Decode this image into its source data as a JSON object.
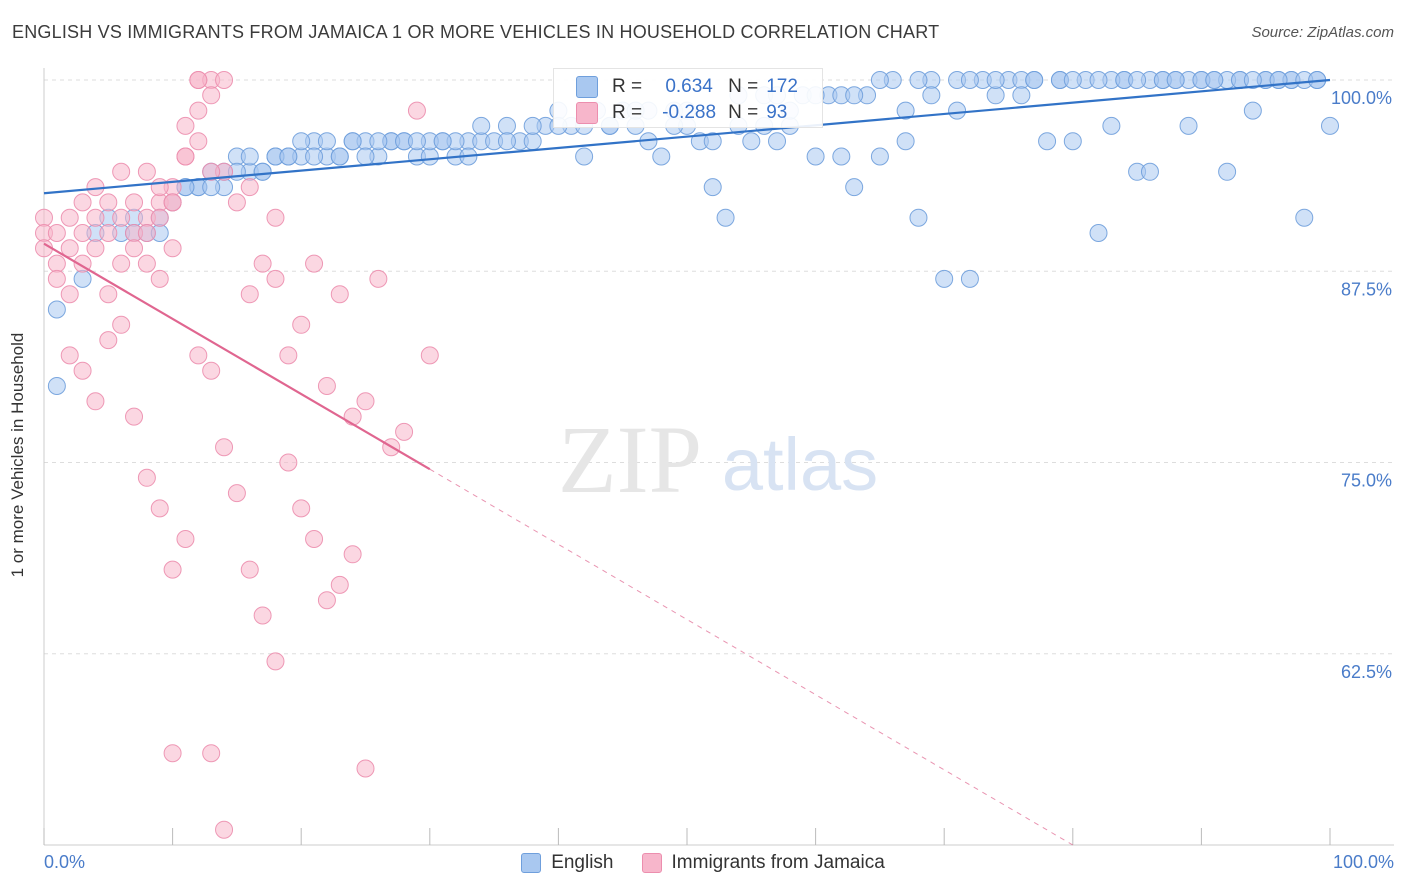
{
  "title": "ENGLISH VS IMMIGRANTS FROM JAMAICA 1 OR MORE VEHICLES IN HOUSEHOLD CORRELATION CHART",
  "source": "Source: ZipAtlas.com",
  "watermark": {
    "zip": "ZIP",
    "atlas": "atlas"
  },
  "stats": {
    "english": {
      "r_label": "R =",
      "r": "0.634",
      "n_label": "N =",
      "n": "172"
    },
    "jamaica": {
      "r_label": "R =",
      "r": "-0.288",
      "n_label": "N =",
      "n": "93"
    }
  },
  "colors": {
    "english_fill": "#a9c8f0",
    "english_stroke": "#6f9fdc",
    "english_line": "#3273c7",
    "jamaica_fill": "#f7b6cb",
    "jamaica_stroke": "#ec8eae",
    "jamaica_line": "#e06690",
    "tick_text": "#4a7cc9",
    "grid": "#dddddd"
  },
  "chart_data": {
    "type": "scatter",
    "title": "ENGLISH VS IMMIGRANTS FROM JAMAICA 1 OR MORE VEHICLES IN HOUSEHOLD CORRELATION CHART",
    "xlabel": "",
    "ylabel": "1 or more Vehicles in Household",
    "xlim": [
      0,
      100
    ],
    "ylim": [
      50,
      100
    ],
    "x_tick_labels": [
      "0.0%",
      "100.0%"
    ],
    "y_ticks": [
      100,
      87.5,
      75,
      62.5
    ],
    "y_tick_labels": [
      "100.0%",
      "87.5%",
      "75.0%",
      "62.5%"
    ],
    "grid": true,
    "legend": "bottom",
    "series": [
      {
        "name": "English",
        "trend": {
          "x": [
            0,
            100
          ],
          "y": [
            92.6,
            100.0
          ],
          "solid_until": 100
        },
        "points": [
          [
            1,
            85
          ],
          [
            1,
            80
          ],
          [
            3,
            87
          ],
          [
            4,
            90
          ],
          [
            5,
            91
          ],
          [
            6,
            90
          ],
          [
            7,
            91
          ],
          [
            8,
            90
          ],
          [
            9,
            91
          ],
          [
            10,
            92
          ],
          [
            11,
            93
          ],
          [
            12,
            93
          ],
          [
            13,
            94
          ],
          [
            14,
            93
          ],
          [
            15,
            95
          ],
          [
            16,
            94
          ],
          [
            17,
            94
          ],
          [
            18,
            95
          ],
          [
            19,
            95
          ],
          [
            20,
            95
          ],
          [
            21,
            96
          ],
          [
            22,
            95
          ],
          [
            23,
            95
          ],
          [
            24,
            96
          ],
          [
            25,
            96
          ],
          [
            26,
            95
          ],
          [
            27,
            96
          ],
          [
            28,
            96
          ],
          [
            29,
            95
          ],
          [
            30,
            95
          ],
          [
            31,
            96
          ],
          [
            32,
            95
          ],
          [
            33,
            96
          ],
          [
            34,
            96
          ],
          [
            35,
            96
          ],
          [
            36,
            97
          ],
          [
            37,
            96
          ],
          [
            38,
            96
          ],
          [
            39,
            97
          ],
          [
            40,
            98
          ],
          [
            41,
            97
          ],
          [
            42,
            95
          ],
          [
            43,
            98
          ],
          [
            44,
            97
          ],
          [
            45,
            98
          ],
          [
            46,
            97
          ],
          [
            47,
            98
          ],
          [
            48,
            95
          ],
          [
            49,
            98
          ],
          [
            50,
            97
          ],
          [
            51,
            96
          ],
          [
            52,
            93
          ],
          [
            53,
            91
          ],
          [
            54,
            99
          ],
          [
            55,
            96
          ],
          [
            56,
            97
          ],
          [
            57,
            96
          ],
          [
            58,
            97
          ],
          [
            59,
            99
          ],
          [
            60,
            95
          ],
          [
            61,
            99
          ],
          [
            62,
            95
          ],
          [
            63,
            93
          ],
          [
            64,
            99
          ],
          [
            65,
            95
          ],
          [
            66,
            100
          ],
          [
            67,
            96
          ],
          [
            68,
            91
          ],
          [
            69,
            100
          ],
          [
            70,
            87
          ],
          [
            71,
            98
          ],
          [
            72,
            87
          ],
          [
            73,
            100
          ],
          [
            74,
            99
          ],
          [
            75,
            100
          ],
          [
            76,
            100
          ],
          [
            77,
            100
          ],
          [
            78,
            96
          ],
          [
            79,
            100
          ],
          [
            80,
            96
          ],
          [
            81,
            100
          ],
          [
            82,
            90
          ],
          [
            83,
            97
          ],
          [
            84,
            100
          ],
          [
            85,
            94
          ],
          [
            86,
            94
          ],
          [
            87,
            100
          ],
          [
            88,
            100
          ],
          [
            89,
            97
          ],
          [
            90,
            100
          ],
          [
            91,
            100
          ],
          [
            92,
            94
          ],
          [
            93,
            100
          ],
          [
            94,
            98
          ],
          [
            95,
            100
          ],
          [
            96,
            100
          ],
          [
            97,
            100
          ],
          [
            98,
            91
          ],
          [
            99,
            100
          ],
          [
            100,
            97
          ],
          [
            23,
            95
          ],
          [
            27,
            96
          ],
          [
            33,
            95
          ],
          [
            38,
            97
          ],
          [
            44,
            97
          ],
          [
            47,
            96
          ],
          [
            49,
            97
          ],
          [
            52,
            96
          ],
          [
            56,
            99
          ],
          [
            58,
            98
          ],
          [
            62,
            99
          ],
          [
            65,
            100
          ],
          [
            67,
            98
          ],
          [
            69,
            99
          ],
          [
            71,
            100
          ],
          [
            76,
            99
          ],
          [
            79,
            100
          ],
          [
            83,
            100
          ],
          [
            86,
            100
          ],
          [
            89,
            100
          ],
          [
            92,
            100
          ],
          [
            95,
            100
          ],
          [
            97,
            100
          ],
          [
            12,
            93
          ],
          [
            14,
            94
          ],
          [
            16,
            95
          ],
          [
            18,
            95
          ],
          [
            20,
            96
          ],
          [
            22,
            96
          ],
          [
            24,
            96
          ],
          [
            26,
            96
          ],
          [
            28,
            96
          ],
          [
            30,
            96
          ],
          [
            32,
            96
          ],
          [
            34,
            97
          ],
          [
            36,
            96
          ],
          [
            40,
            97
          ],
          [
            42,
            97
          ],
          [
            46,
            98
          ],
          [
            50,
            98
          ],
          [
            54,
            97
          ],
          [
            57,
            99
          ],
          [
            60,
            99
          ],
          [
            63,
            99
          ],
          [
            68,
            100
          ],
          [
            72,
            100
          ],
          [
            74,
            100
          ],
          [
            77,
            100
          ],
          [
            80,
            100
          ],
          [
            82,
            100
          ],
          [
            84,
            100
          ],
          [
            85,
            100
          ],
          [
            87,
            100
          ],
          [
            88,
            100
          ],
          [
            90,
            100
          ],
          [
            91,
            100
          ],
          [
            93,
            100
          ],
          [
            94,
            100
          ],
          [
            96,
            100
          ],
          [
            98,
            100
          ],
          [
            99,
            100
          ],
          [
            7,
            90
          ],
          [
            9,
            90
          ],
          [
            11,
            93
          ],
          [
            13,
            93
          ],
          [
            15,
            94
          ],
          [
            17,
            94
          ],
          [
            19,
            95
          ],
          [
            21,
            95
          ],
          [
            25,
            95
          ],
          [
            29,
            96
          ],
          [
            31,
            96
          ]
        ]
      },
      {
        "name": "Immigrants from Jamaica",
        "trend": {
          "x": [
            0,
            80
          ],
          "y": [
            89.3,
            50.0
          ],
          "solid_until": 30
        },
        "points": [
          [
            0,
            91
          ],
          [
            0,
            90
          ],
          [
            1,
            88
          ],
          [
            1,
            87
          ],
          [
            2,
            89
          ],
          [
            2,
            86
          ],
          [
            3,
            90
          ],
          [
            3,
            88
          ],
          [
            4,
            91
          ],
          [
            4,
            89
          ],
          [
            5,
            90
          ],
          [
            5,
            86
          ],
          [
            6,
            91
          ],
          [
            6,
            88
          ],
          [
            7,
            90
          ],
          [
            7,
            92
          ],
          [
            8,
            91
          ],
          [
            8,
            90
          ],
          [
            9,
            92
          ],
          [
            9,
            91
          ],
          [
            10,
            93
          ],
          [
            10,
            92
          ],
          [
            11,
            97
          ],
          [
            11,
            95
          ],
          [
            12,
            100
          ],
          [
            12,
            98
          ],
          [
            13,
            100
          ],
          [
            14,
            94
          ],
          [
            15,
            92
          ],
          [
            16,
            86
          ],
          [
            17,
            88
          ],
          [
            18,
            87
          ],
          [
            19,
            82
          ],
          [
            20,
            84
          ],
          [
            21,
            88
          ],
          [
            22,
            80
          ],
          [
            23,
            86
          ],
          [
            24,
            78
          ],
          [
            25,
            79
          ],
          [
            26,
            87
          ],
          [
            2,
            82
          ],
          [
            3,
            81
          ],
          [
            4,
            79
          ],
          [
            5,
            83
          ],
          [
            6,
            84
          ],
          [
            7,
            78
          ],
          [
            8,
            74
          ],
          [
            9,
            72
          ],
          [
            10,
            68
          ],
          [
            11,
            70
          ],
          [
            12,
            82
          ],
          [
            13,
            81
          ],
          [
            14,
            76
          ],
          [
            15,
            73
          ],
          [
            16,
            68
          ],
          [
            17,
            65
          ],
          [
            18,
            62
          ],
          [
            19,
            75
          ],
          [
            20,
            72
          ],
          [
            21,
            70
          ],
          [
            22,
            66
          ],
          [
            23,
            67
          ],
          [
            24,
            69
          ],
          [
            27,
            76
          ],
          [
            28,
            77
          ],
          [
            29,
            98
          ],
          [
            30,
            82
          ],
          [
            8,
            94
          ],
          [
            9,
            93
          ],
          [
            10,
            92
          ],
          [
            11,
            95
          ],
          [
            12,
            96
          ],
          [
            13,
            94
          ],
          [
            4,
            93
          ],
          [
            5,
            92
          ],
          [
            6,
            94
          ],
          [
            3,
            92
          ],
          [
            2,
            91
          ],
          [
            1,
            90
          ],
          [
            0,
            89
          ],
          [
            7,
            89
          ],
          [
            8,
            88
          ],
          [
            9,
            87
          ],
          [
            10,
            89
          ],
          [
            12,
            100
          ],
          [
            13,
            99
          ],
          [
            14,
            100
          ],
          [
            25,
            55
          ],
          [
            10,
            56
          ],
          [
            13,
            56
          ],
          [
            14,
            51
          ],
          [
            16,
            93
          ],
          [
            18,
            91
          ]
        ]
      }
    ]
  }
}
